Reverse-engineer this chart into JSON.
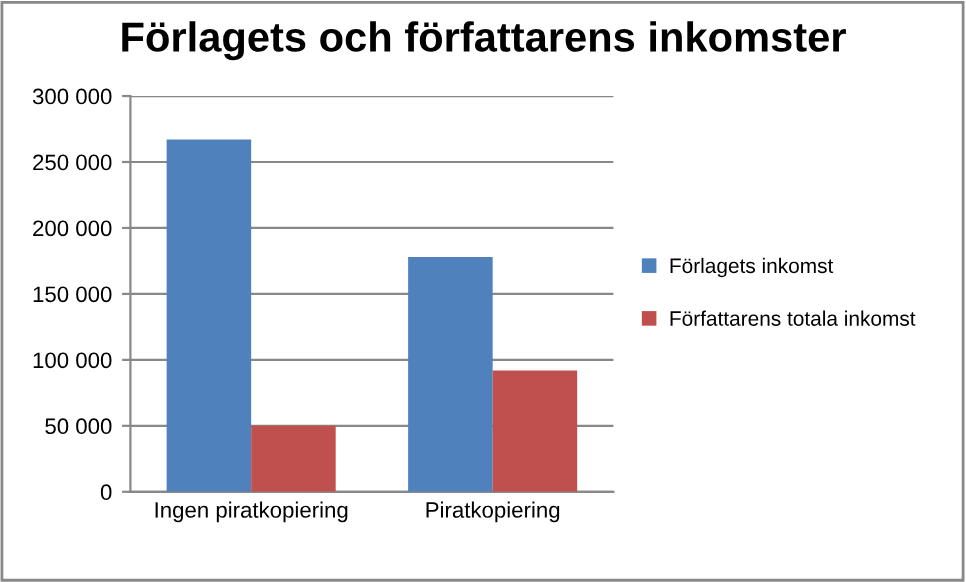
{
  "chart_data": {
    "type": "bar",
    "title": "Förlagets och författarens inkomster",
    "categories": [
      "Ingen piratkopiering",
      "Piratkopiering"
    ],
    "series": [
      {
        "name": "Förlagets inkomst",
        "color": "#4f81bd",
        "values": [
          267000,
          178000
        ]
      },
      {
        "name": "Författarens totala inkomst",
        "color": "#c0504d",
        "values": [
          50000,
          92000
        ]
      }
    ],
    "ylim": [
      0,
      300000
    ],
    "yticks": [
      {
        "value": 0,
        "label": "0"
      },
      {
        "value": 50000,
        "label": "50 000"
      },
      {
        "value": 100000,
        "label": "100 000"
      },
      {
        "value": 150000,
        "label": "150 000"
      },
      {
        "value": 200000,
        "label": "200 000"
      },
      {
        "value": 250000,
        "label": "250 000"
      },
      {
        "value": 300000,
        "label": "300 000"
      }
    ],
    "grid": "y",
    "legend": "right"
  }
}
